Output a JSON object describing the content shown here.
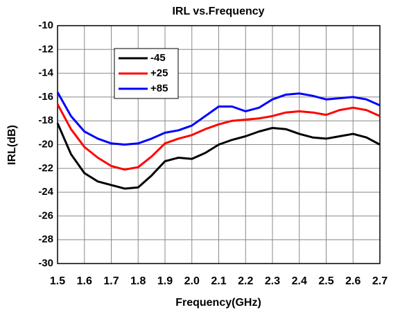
{
  "chart_data": {
    "type": "line",
    "title": "IRL vs.Frequency",
    "x_label": "Frequency(GHz)",
    "y_label": "IRL(dB)",
    "x": [
      1.5,
      1.55,
      1.6,
      1.65,
      1.7,
      1.75,
      1.8,
      1.85,
      1.9,
      1.95,
      2.0,
      2.05,
      2.1,
      2.15,
      2.2,
      2.25,
      2.3,
      2.35,
      2.4,
      2.45,
      2.5,
      2.55,
      2.6,
      2.65,
      2.7
    ],
    "series": [
      {
        "name": "-45",
        "color": "#000000",
        "values": [
          -18.2,
          -20.8,
          -22.4,
          -23.1,
          -23.4,
          -23.7,
          -23.6,
          -22.6,
          -21.4,
          -21.1,
          -21.2,
          -20.7,
          -20.0,
          -19.6,
          -19.3,
          -18.9,
          -18.6,
          -18.7,
          -19.1,
          -19.4,
          -19.5,
          -19.3,
          -19.1,
          -19.4,
          -20.0
        ]
      },
      {
        "name": "+25",
        "color": "#ff0000",
        "values": [
          -16.6,
          -18.7,
          -20.2,
          -21.1,
          -21.8,
          -22.1,
          -21.9,
          -21.0,
          -19.9,
          -19.5,
          -19.2,
          -18.7,
          -18.3,
          -18.0,
          -17.9,
          -17.8,
          -17.6,
          -17.3,
          -17.2,
          -17.3,
          -17.5,
          -17.1,
          -16.9,
          -17.1,
          -17.6
        ]
      },
      {
        "name": "+85",
        "color": "#0000ff",
        "values": [
          -15.6,
          -17.6,
          -18.9,
          -19.5,
          -19.9,
          -20.0,
          -19.9,
          -19.5,
          -19.0,
          -18.8,
          -18.4,
          -17.6,
          -16.8,
          -16.8,
          -17.2,
          -16.9,
          -16.2,
          -15.8,
          -15.7,
          -15.9,
          -16.2,
          -16.1,
          -16.0,
          -16.2,
          -16.7
        ]
      }
    ],
    "xlim": [
      1.5,
      2.7
    ],
    "xticks": [
      1.5,
      1.6,
      1.7,
      1.8,
      1.9,
      {
        "value": 2,
        "label": "2.0"
      },
      2.1,
      2.2,
      2.3,
      2.4,
      2.5,
      2.6,
      2.7
    ],
    "ylim": [
      -30,
      -10
    ],
    "yticks": [
      -30,
      -28,
      -26,
      -24,
      -22,
      -20,
      -18,
      -16,
      -14,
      -12,
      -10
    ],
    "grid": true,
    "legend": "upper left"
  }
}
